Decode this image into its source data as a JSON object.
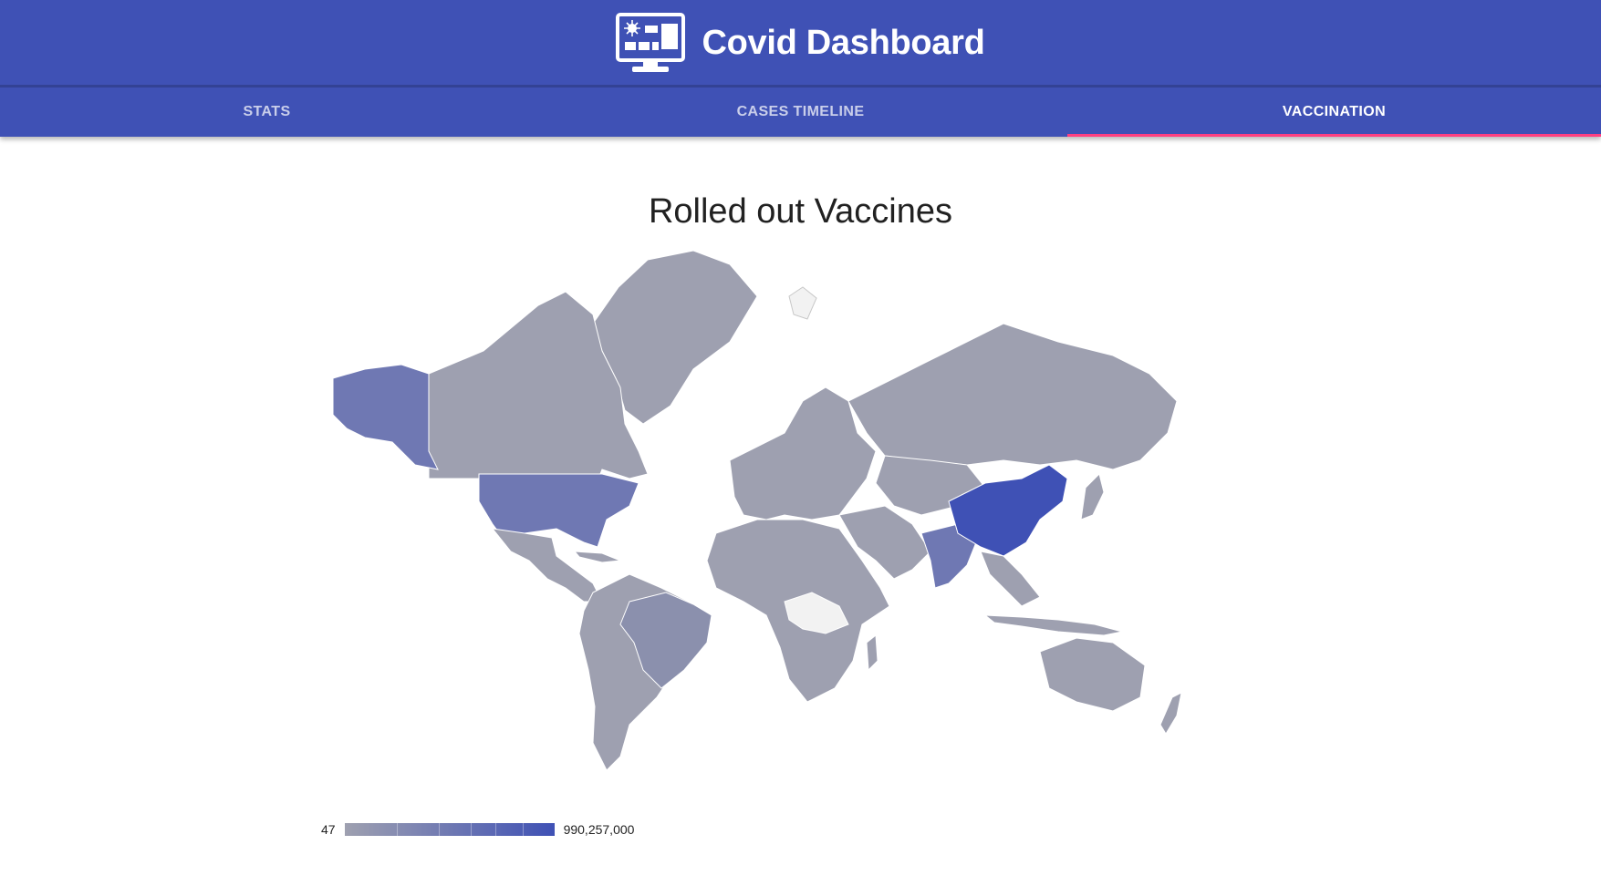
{
  "app": {
    "title": "Covid Dashboard",
    "logo_icon": "monitor-dashboard-icon"
  },
  "tabs": [
    {
      "label": "STATS",
      "active": false
    },
    {
      "label": "CASES TIMELINE",
      "active": false
    },
    {
      "label": "VACCINATION",
      "active": true
    }
  ],
  "main": {
    "title": "Rolled out Vaccines"
  },
  "legend": {
    "min_label": "47",
    "max_label": "990,257,000"
  },
  "colors": {
    "primary": "#3f51b5",
    "tab_indicator": "#ff4081",
    "map_low": "#9ea0b0",
    "map_mid": "#6f78b3",
    "map_high": "#3f51b5",
    "map_no_data": "#f2f2f2"
  }
}
